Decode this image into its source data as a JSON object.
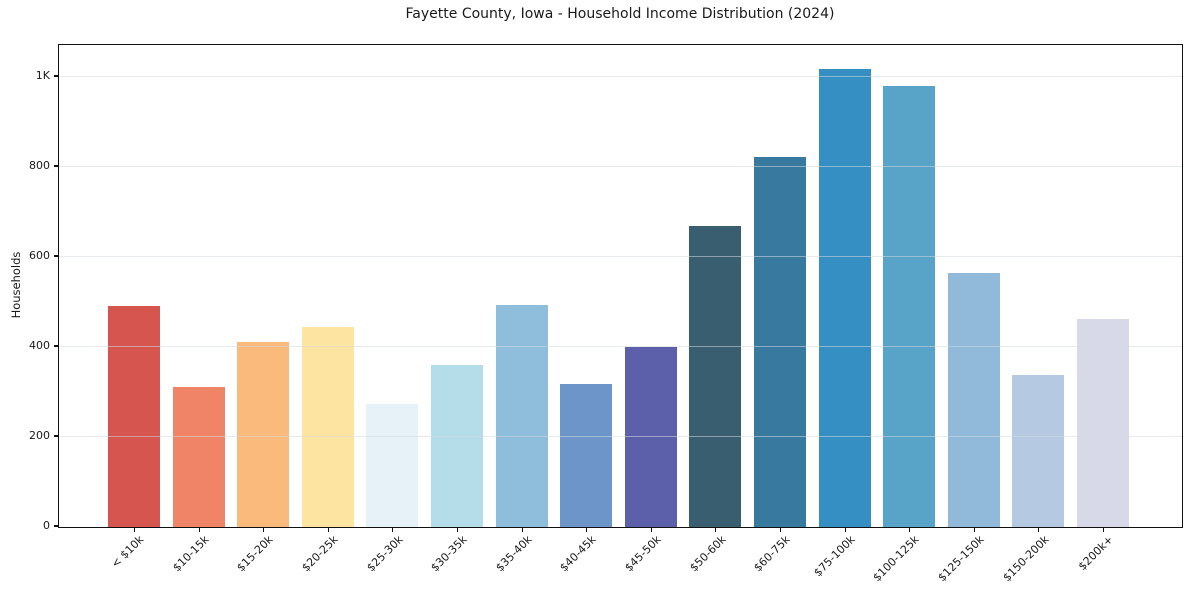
{
  "chart_data": {
    "type": "bar",
    "title": "Fayette County, Iowa - Household Income Distribution (2024)",
    "xlabel": "",
    "ylabel": "Households",
    "categories": [
      "< $10k",
      "$10-15k",
      "$15-20k",
      "$20-25k",
      "$25-30k",
      "$30-35k",
      "$35-40k",
      "$40-45k",
      "$45-50k",
      "$50-60k",
      "$60-75k",
      "$75-100k",
      "$100-125k",
      "$125-150k",
      "$150-200k",
      "$200k+"
    ],
    "values": [
      490,
      311,
      410,
      443,
      272,
      359,
      492,
      317,
      399,
      667,
      821,
      1016,
      979,
      564,
      336,
      462
    ],
    "bar_colors": [
      "#d6564f",
      "#ef8566",
      "#f9ba7b",
      "#fde4a0",
      "#e6f2f7",
      "#b4dce9",
      "#8fbddc",
      "#6e95c9",
      "#5c5fa9",
      "#395e70",
      "#38799f",
      "#368fc2",
      "#58a3c8",
      "#90b9da",
      "#b5c9e2",
      "#d7d9e8"
    ],
    "y_ticks": [
      {
        "value": 0,
        "label": "0"
      },
      {
        "value": 200,
        "label": "200"
      },
      {
        "value": 400,
        "label": "400"
      },
      {
        "value": 600,
        "label": "600"
      },
      {
        "value": 800,
        "label": "800"
      },
      {
        "value": 1000,
        "label": "1K"
      }
    ],
    "ylim": [
      0,
      1069
    ],
    "grid": "horizontal",
    "legend": "none",
    "x_tick_rotation": -45
  },
  "colors": {
    "background": "#ffffff",
    "spine": "#111111",
    "grid": "#ebebeb",
    "text": "#1a1a1a"
  }
}
